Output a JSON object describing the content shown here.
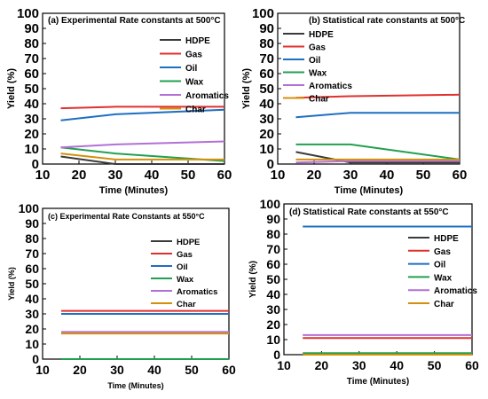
{
  "chart_data": [
    {
      "type": "line",
      "title": "(a)   Experimental Rate constants at 500°C",
      "xlabel": "Time (Minutes)",
      "ylabel": "Yield (%)",
      "xlim": [
        10,
        60
      ],
      "ylim": [
        0,
        100
      ],
      "xticks": [
        10,
        20,
        30,
        40,
        50,
        60
      ],
      "yticks": [
        0,
        10,
        20,
        30,
        40,
        50,
        60,
        70,
        80,
        90,
        100
      ],
      "legend_position": "top-right",
      "series": [
        {
          "name": "HDPE",
          "color": "#3a3a3a",
          "x": [
            15,
            30,
            60
          ],
          "y": [
            5,
            0,
            0
          ]
        },
        {
          "name": "Gas",
          "color": "#e0302e",
          "x": [
            15,
            30,
            60
          ],
          "y": [
            37,
            38,
            38
          ]
        },
        {
          "name": "Oil",
          "color": "#1f6fc0",
          "x": [
            15,
            30,
            60
          ],
          "y": [
            29,
            33,
            36
          ]
        },
        {
          "name": "Wax",
          "color": "#22a050",
          "x": [
            15,
            30,
            60
          ],
          "y": [
            11,
            7,
            2
          ]
        },
        {
          "name": "Aromatics",
          "color": "#b270d6",
          "x": [
            15,
            30,
            60
          ],
          "y": [
            11,
            13,
            15
          ]
        },
        {
          "name": "Char",
          "color": "#d4900c",
          "x": [
            15,
            30,
            60
          ],
          "y": [
            7,
            3,
            3
          ]
        }
      ]
    },
    {
      "type": "line",
      "title": "(b)   Statistical rate constants at 500°C",
      "xlabel": "Time (Minutes)",
      "ylabel": "Yield (%)",
      "xlim": [
        10,
        60
      ],
      "ylim": [
        0,
        100
      ],
      "xticks": [
        10,
        20,
        30,
        40,
        50,
        60
      ],
      "yticks": [
        0,
        10,
        20,
        30,
        40,
        50,
        60,
        70,
        80,
        90,
        100
      ],
      "legend_position": "top-left",
      "series": [
        {
          "name": "HDPE",
          "color": "#3a3a3a",
          "x": [
            15,
            30,
            60
          ],
          "y": [
            8,
            1,
            1
          ]
        },
        {
          "name": "Gas",
          "color": "#e0302e",
          "x": [
            15,
            30,
            60
          ],
          "y": [
            44,
            45,
            46
          ]
        },
        {
          "name": "Oil",
          "color": "#1f6fc0",
          "x": [
            15,
            30,
            60
          ],
          "y": [
            31,
            34,
            34
          ]
        },
        {
          "name": "Wax",
          "color": "#22a050",
          "x": [
            15,
            30,
            60
          ],
          "y": [
            13,
            13,
            3
          ]
        },
        {
          "name": "Aromatics",
          "color": "#b270d6",
          "x": [
            15,
            30,
            60
          ],
          "y": [
            1,
            2,
            2
          ]
        },
        {
          "name": "Char",
          "color": "#d4900c",
          "x": [
            15,
            30,
            60
          ],
          "y": [
            3,
            3,
            3
          ]
        }
      ]
    },
    {
      "type": "line",
      "title": "(c)   Experimental Rate Constants at 550°C",
      "xlabel": "Time (Minutes)",
      "ylabel": "Yield (%)",
      "xlim": [
        10,
        60
      ],
      "ylim": [
        0,
        100
      ],
      "xticks": [
        10,
        20,
        30,
        40,
        50,
        60
      ],
      "yticks": [
        0,
        10,
        20,
        30,
        40,
        50,
        60,
        70,
        80,
        90,
        100
      ],
      "legend_position": "top-right",
      "series": [
        {
          "name": "HDPE",
          "color": "#3a3a3a",
          "x": [
            15,
            60
          ],
          "y": [
            0,
            0
          ]
        },
        {
          "name": "Gas",
          "color": "#e0302e",
          "x": [
            15,
            60
          ],
          "y": [
            32,
            32
          ]
        },
        {
          "name": "Oil",
          "color": "#1f6fc0",
          "x": [
            15,
            60
          ],
          "y": [
            30,
            30
          ]
        },
        {
          "name": "Wax",
          "color": "#22a050",
          "x": [
            15,
            60
          ],
          "y": [
            0,
            0
          ]
        },
        {
          "name": "Aromatics",
          "color": "#b270d6",
          "x": [
            15,
            60
          ],
          "y": [
            18,
            18
          ]
        },
        {
          "name": "Char",
          "color": "#d4900c",
          "x": [
            15,
            60
          ],
          "y": [
            17,
            17
          ]
        }
      ]
    },
    {
      "type": "line",
      "title": "(d)   Statistical Rate constants at 550°C",
      "xlabel": "Time (Minutes)",
      "ylabel": "Yield (%)",
      "xlim": [
        10,
        60
      ],
      "ylim": [
        0,
        100
      ],
      "xticks": [
        10,
        20,
        30,
        40,
        50,
        60
      ],
      "yticks": [
        0,
        10,
        20,
        30,
        40,
        50,
        60,
        70,
        80,
        90,
        100
      ],
      "legend_position": "top-right",
      "series": [
        {
          "name": "HDPE",
          "color": "#3a3a3a",
          "x": [
            15,
            60
          ],
          "y": [
            0,
            0
          ]
        },
        {
          "name": "Gas",
          "color": "#e0302e",
          "x": [
            15,
            60
          ],
          "y": [
            11,
            11
          ]
        },
        {
          "name": "Oil",
          "color": "#1f6fc0",
          "x": [
            15,
            60
          ],
          "y": [
            85,
            85
          ]
        },
        {
          "name": "Wax",
          "color": "#22a050",
          "x": [
            15,
            60
          ],
          "y": [
            1,
            1
          ]
        },
        {
          "name": "Aromatics",
          "color": "#b270d6",
          "x": [
            15,
            60
          ],
          "y": [
            13,
            13
          ]
        },
        {
          "name": "Char",
          "color": "#d4900c",
          "x": [
            15,
            60
          ],
          "y": [
            0,
            0
          ]
        }
      ]
    }
  ]
}
